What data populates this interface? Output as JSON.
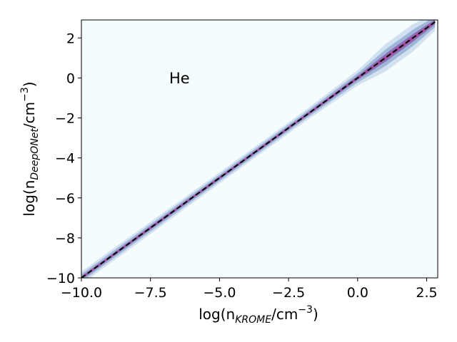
{
  "chart_data": {
    "type": "heatmap",
    "description_of_marks": "2D histogram density of predicted vs reference log abundance with identity line",
    "annotation": "He",
    "xlabel": {
      "prefix": "log(n",
      "sub": "KROME",
      "suffix": "/cm",
      "sup": "−3",
      "close": ")"
    },
    "ylabel": {
      "prefix": "log(n",
      "sub": "DeepONet",
      "suffix": "/cm",
      "sup": "−3",
      "close": ")"
    },
    "xlim": [
      -10.0,
      2.9
    ],
    "ylim": [
      -10.0,
      2.9
    ],
    "xticks": [
      {
        "value": -10.0,
        "label": "−10.0"
      },
      {
        "value": -7.5,
        "label": "−7.5"
      },
      {
        "value": -5.0,
        "label": "−5.0"
      },
      {
        "value": -2.5,
        "label": "−2.5"
      },
      {
        "value": 0.0,
        "label": "0.0"
      },
      {
        "value": 2.5,
        "label": "2.5"
      }
    ],
    "yticks": [
      {
        "value": -10,
        "label": "−10"
      },
      {
        "value": -8,
        "label": "−8"
      },
      {
        "value": -6,
        "label": "−6"
      },
      {
        "value": -4,
        "label": "−4"
      },
      {
        "value": -2,
        "label": "−2"
      },
      {
        "value": 0,
        "label": "0"
      },
      {
        "value": 2,
        "label": "2"
      }
    ],
    "identity_line": {
      "x": [
        -10.0,
        2.9
      ],
      "y": [
        -10.0,
        2.9
      ],
      "style": "dashed",
      "color": "#000000"
    },
    "density_band": {
      "centerline": "y = x",
      "x_range": [
        -10.0,
        2.8
      ],
      "widths": [
        {
          "x": -10.0,
          "halfwidth": 0.25
        },
        {
          "x": -8.5,
          "halfwidth": 0.25
        },
        {
          "x": -5.0,
          "halfwidth": 0.22
        },
        {
          "x": -2.0,
          "halfwidth": 0.22
        },
        {
          "x": 0.0,
          "halfwidth": 0.3
        },
        {
          "x": 1.0,
          "halfwidth": 0.55
        },
        {
          "x": 2.0,
          "halfwidth": 0.55
        },
        {
          "x": 2.8,
          "halfwidth": 0.35
        }
      ]
    },
    "colors": {
      "background": "#f4fcfd",
      "outer": "#c6d8ea",
      "mid": "#98aed4",
      "inner": "#8a62b0",
      "core": "#b23a92"
    },
    "grid": false,
    "legend": "none"
  }
}
